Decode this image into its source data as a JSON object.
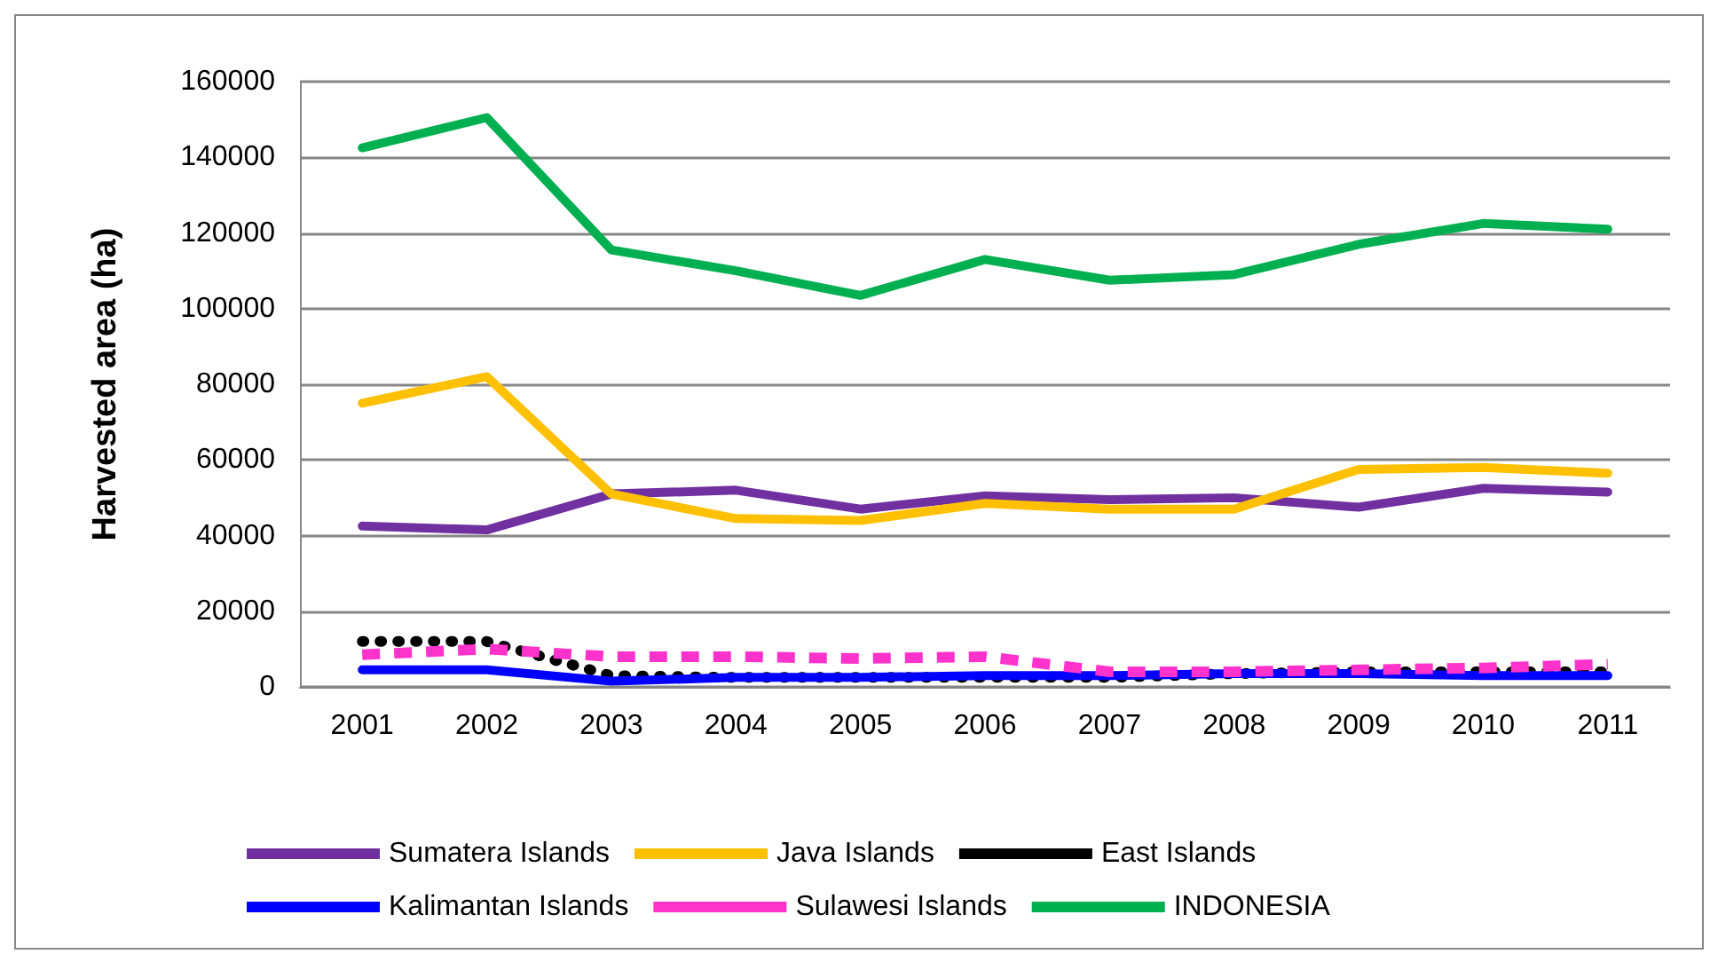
{
  "chart_data": {
    "type": "line",
    "ylabel": "Harvested area (ha)",
    "categories": [
      "2001",
      "2002",
      "2003",
      "2004",
      "2005",
      "2006",
      "2007",
      "2008",
      "2009",
      "2010",
      "2011"
    ],
    "series": [
      {
        "name": "Sumatera Islands",
        "color": "#7030a0",
        "values": [
          42500,
          41500,
          51000,
          52000,
          47000,
          50500,
          49500,
          50000,
          47500,
          52500,
          51500
        ]
      },
      {
        "name": "Java Islands",
        "color": "#ffc000",
        "values": [
          75000,
          82000,
          51000,
          44500,
          44000,
          48500,
          47000,
          47000,
          57500,
          58000,
          56500
        ]
      },
      {
        "name": "East Islands",
        "color": "#000000",
        "line_style": "dotted",
        "values": [
          12000,
          12000,
          3000,
          2500,
          2500,
          2500,
          2500,
          3500,
          4000,
          4000,
          4000
        ]
      },
      {
        "name": "Kalimantan Islands",
        "color": "#0000ff",
        "values": [
          4500,
          4500,
          1500,
          2500,
          2500,
          3000,
          3000,
          3500,
          3500,
          3000,
          3000
        ]
      },
      {
        "name": "Sulawesi Islands",
        "color": "#ff33cc",
        "line_style": "dashed",
        "values": [
          8500,
          10000,
          8000,
          8000,
          7500,
          8000,
          4000,
          4000,
          4500,
          5000,
          6000
        ]
      },
      {
        "name": "INDONESIA",
        "color": "#00b050",
        "values": [
          142500,
          150500,
          115500,
          110000,
          103500,
          113000,
          107500,
          109000,
          117000,
          122500,
          121000
        ]
      }
    ],
    "ylim": [
      0,
      160000
    ],
    "yticks": [
      0,
      20000,
      40000,
      60000,
      80000,
      100000,
      120000,
      140000,
      160000
    ],
    "grid": "y",
    "legend": "bottom",
    "marker": "none"
  }
}
